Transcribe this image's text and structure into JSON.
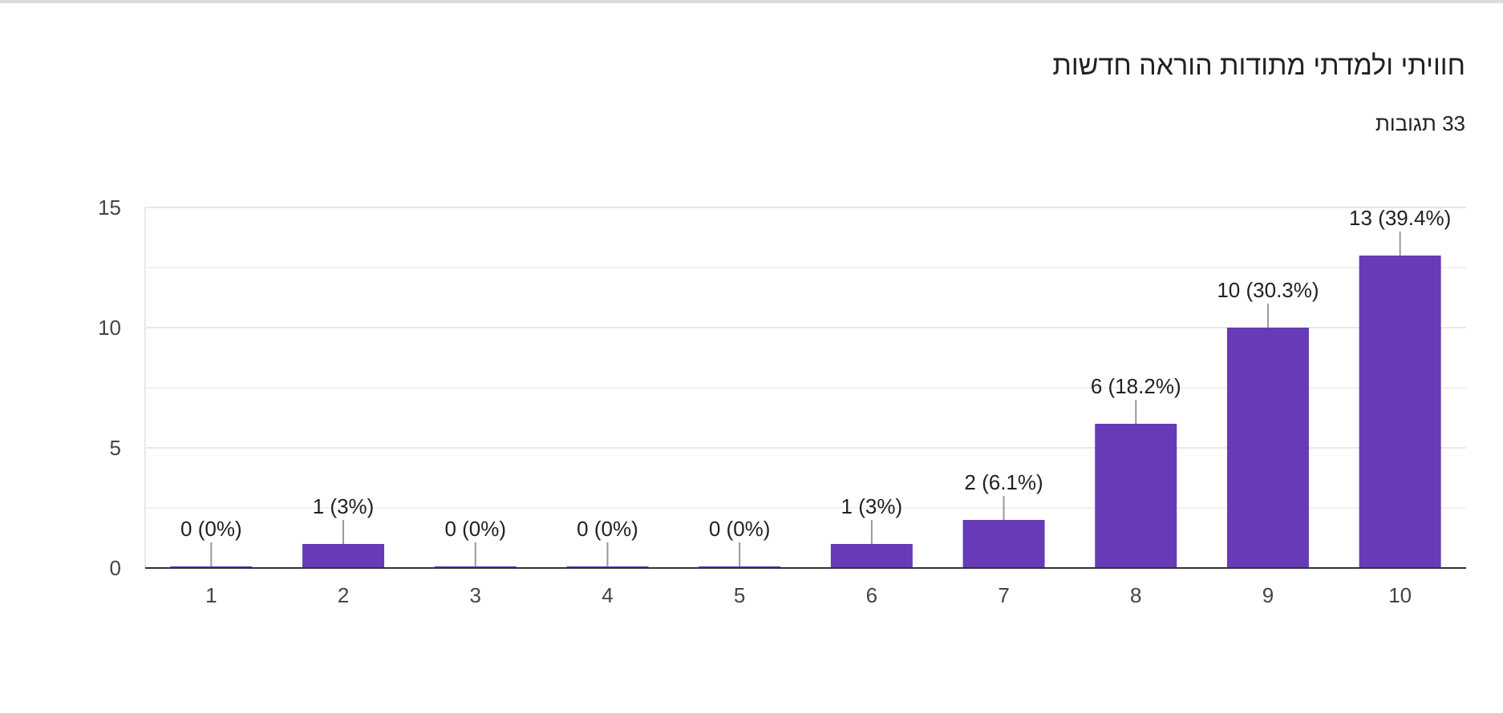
{
  "card": {
    "title": "חוויתי ולמדתי מתודות הוראה חדשות",
    "responses": "33 תגובות"
  },
  "colors": {
    "bar": "#673ab7",
    "grid": "#e8e8e8",
    "axis": "#333333",
    "leader": "#999999"
  },
  "chart_data": {
    "type": "bar",
    "title": "חוויתי ולמדתי מתודות הוראה חדשות",
    "categories": [
      "1",
      "2",
      "3",
      "4",
      "5",
      "6",
      "7",
      "8",
      "9",
      "10"
    ],
    "values": [
      0,
      1,
      0,
      0,
      0,
      1,
      2,
      6,
      10,
      13
    ],
    "data_labels": [
      "0 (0%)",
      "1 (3%)",
      "0 (0%)",
      "0 (0%)",
      "0 (0%)",
      "1 (3%)",
      "2 (6.1%)",
      "6 (18.2%)",
      "10 (30.3%)",
      "13 (39.4%)"
    ],
    "ylim": [
      0,
      15
    ],
    "yticks": [
      0,
      5,
      10,
      15
    ],
    "minor_gridlines": [
      2.5,
      7.5,
      12.5
    ],
    "xlabel": "",
    "ylabel": "",
    "grid": true,
    "legend": "none"
  }
}
